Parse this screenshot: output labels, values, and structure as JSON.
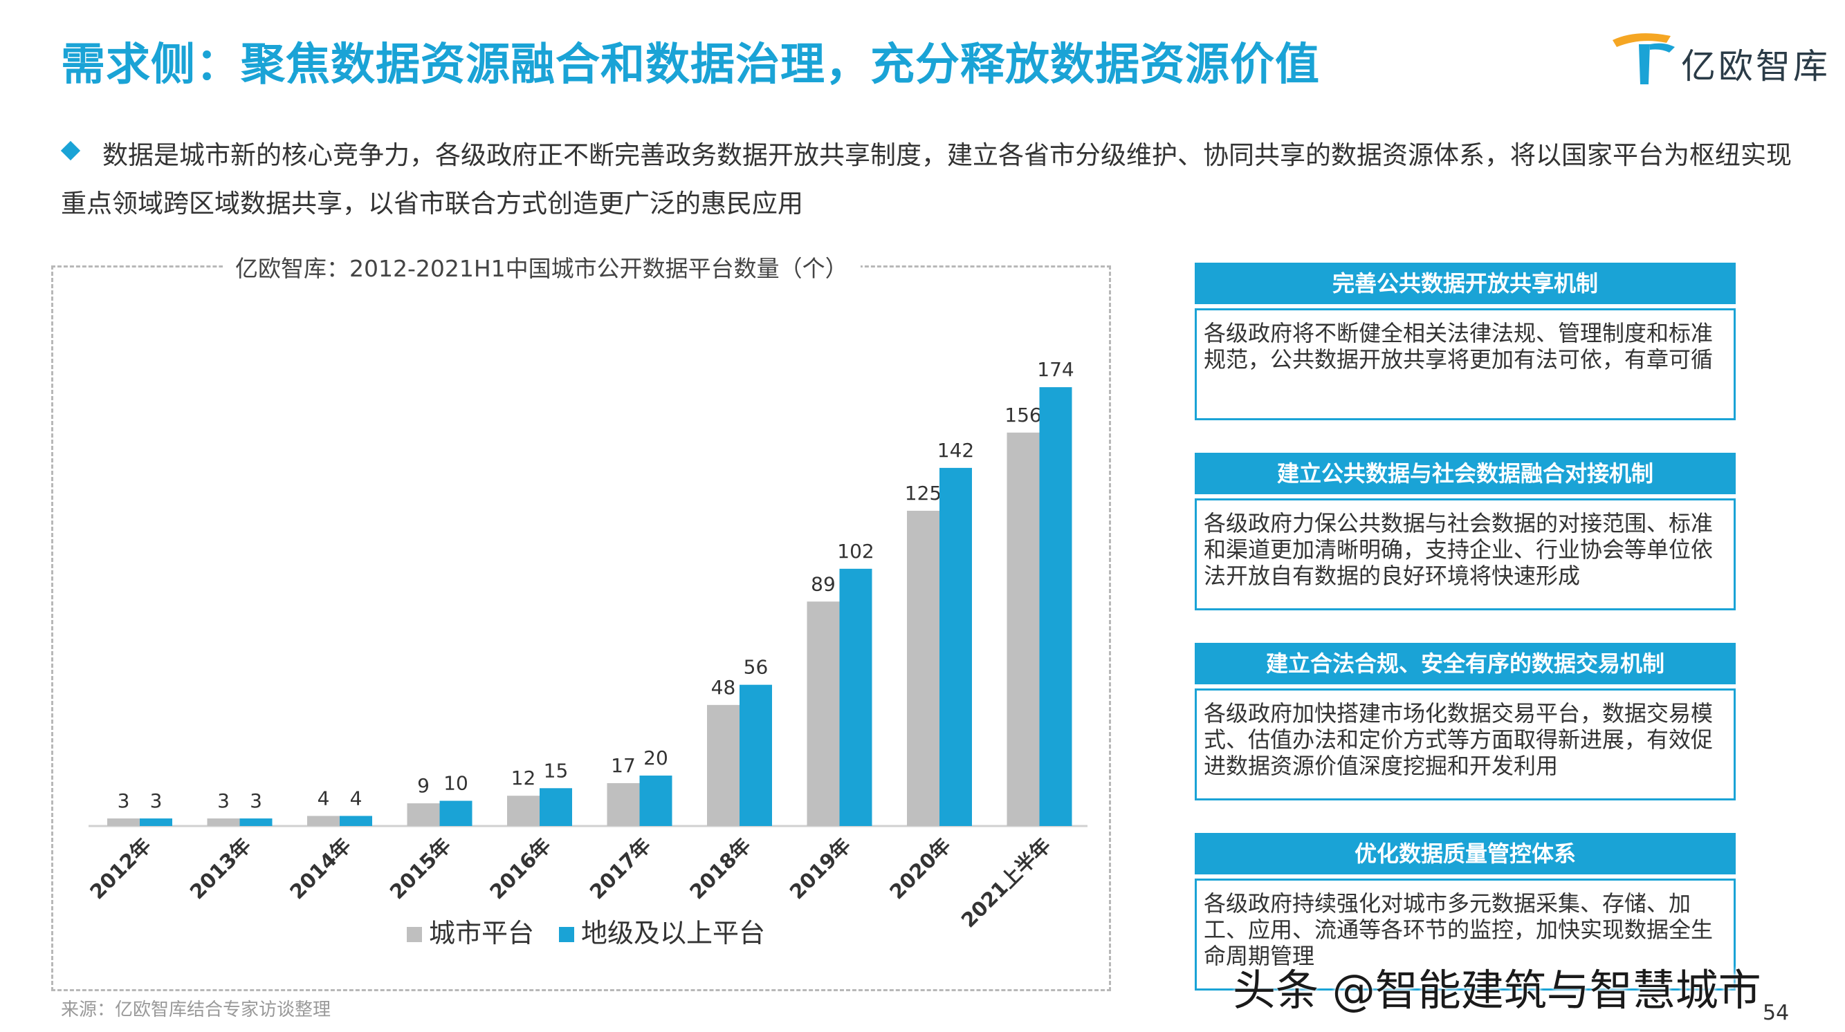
{
  "title": "需求侧：聚焦数据资源融合和数据治理，充分释放数据资源价值",
  "logo": {
    "text": "亿欧智库"
  },
  "intro": "数据是城市新的核心竞争力，各级政府正不断完善政务数据开放共享制度，建立各省市分级维护、协同共享的数据资源体系，将以国家平台为枢纽实现重点领域跨区域数据共享，以省市联合方式创造更广泛的惠民应用",
  "chart_title": "亿欧智库：2012-2021H1中国城市公开数据平台数量（个）",
  "chart_data": {
    "type": "bar",
    "title": "亿欧智库：2012-2021H1中国城市公开数据平台数量（个）",
    "categories": [
      "2012年",
      "2013年",
      "2014年",
      "2015年",
      "2016年",
      "2017年",
      "2018年",
      "2019年",
      "2020年",
      "2021上半年"
    ],
    "series": [
      {
        "name": "城市平台",
        "color": "#bfbfbf",
        "values": [
          3,
          3,
          4,
          9,
          12,
          17,
          48,
          89,
          125,
          156
        ]
      },
      {
        "name": "地级及以上平台",
        "color": "#1aa3d6",
        "values": [
          3,
          3,
          4,
          10,
          15,
          20,
          56,
          102,
          142,
          174
        ]
      }
    ],
    "ylim": [
      0,
      185
    ],
    "xlabel": "",
    "ylabel": "",
    "legend": "bottom"
  },
  "source": "来源：亿欧智库结合专家访谈整理",
  "cards": [
    {
      "title": "完善公共数据开放共享机制",
      "body": "各级政府将不断健全相关法律法规、管理制度和标准规范，公共数据开放共享将更加有法可依，有章可循"
    },
    {
      "title": "建立公共数据与社会数据融合对接机制",
      "body": "各级政府力保公共数据与社会数据的对接范围、标准和渠道更加清晰明确，支持企业、行业协会等单位依法开放自有数据的良好环境将快速形成"
    },
    {
      "title": "建立合法合规、安全有序的数据交易机制",
      "body": "各级政府加快搭建市场化数据交易平台，数据交易模式、估值办法和定价方式等方面取得新进展，有效促进数据资源价值深度挖掘和开发利用"
    },
    {
      "title": "优化数据质量管控体系",
      "body": "各级政府持续强化对城市多元数据采集、存储、加工、应用、流通等各环节的监控，加快实现数据全生命周期管理"
    }
  ],
  "watermark": "头条 @智能建筑与智慧城市",
  "page_number": "54",
  "colors": {
    "accent": "#1aa3d6",
    "gray_bar": "#bfbfbf"
  }
}
